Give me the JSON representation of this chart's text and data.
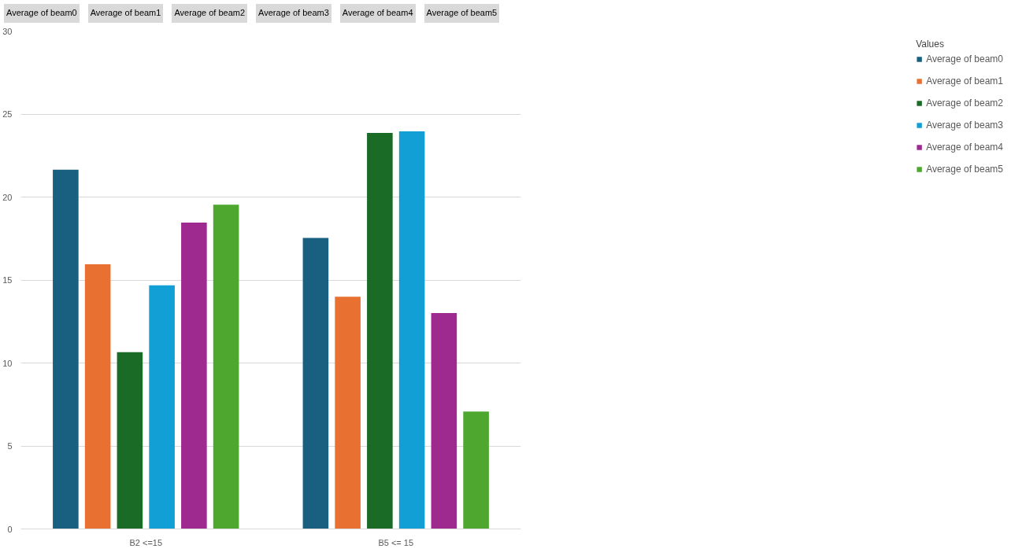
{
  "chart_data": {
    "type": "bar",
    "categories": [
      "B2 <=15",
      "B5 <= 15"
    ],
    "series": [
      {
        "name": "Average of beam0",
        "color": "#185f80",
        "values": [
          21.65,
          17.53
        ]
      },
      {
        "name": "Average of beam1",
        "color": "#e87132",
        "values": [
          15.95,
          13.99
        ]
      },
      {
        "name": "Average of beam2",
        "color": "#1a6b25",
        "values": [
          10.65,
          23.86
        ]
      },
      {
        "name": "Average of beam3",
        "color": "#119fd6",
        "values": [
          14.68,
          23.96
        ]
      },
      {
        "name": "Average of beam4",
        "color": "#9e2a90",
        "values": [
          18.46,
          13.01
        ]
      },
      {
        "name": "Average of beam5",
        "color": "#4ea72f",
        "values": [
          19.54,
          7.07
        ]
      }
    ],
    "annotations": [
      "Average of beam0",
      "Average of beam1",
      "Average of beam2",
      "Average of beam3",
      "Average of beam4",
      "Average of beam5"
    ],
    "legend_title": "Values",
    "legend": "right",
    "grid": "y",
    "ylim": [
      0,
      30
    ],
    "yticks": [
      0,
      5,
      10,
      15,
      20,
      25,
      30
    ]
  }
}
